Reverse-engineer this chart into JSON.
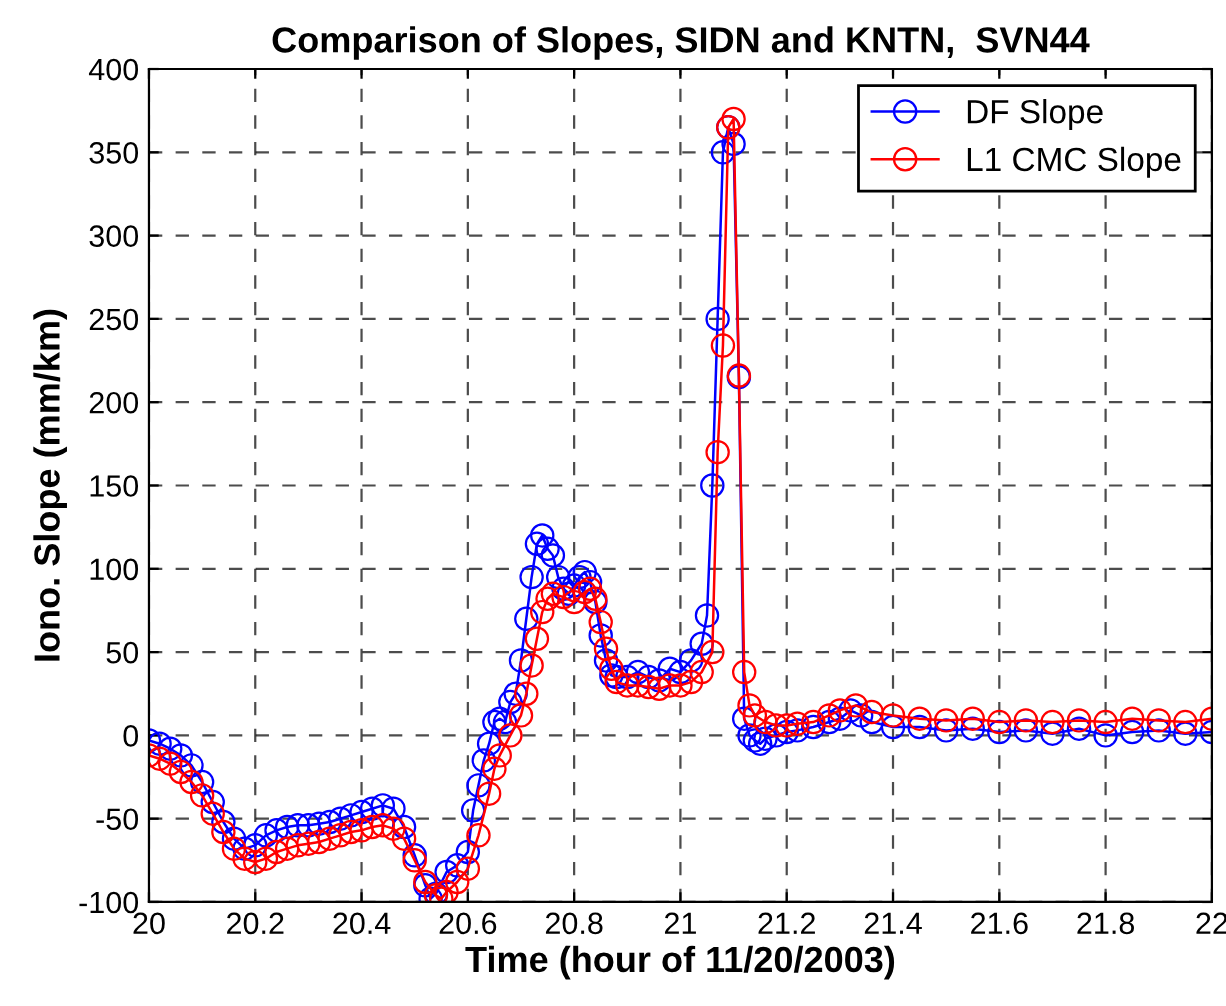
{
  "chart_data": {
    "type": "line",
    "title": "Comparison of Slopes, SIDN and KNTN,  SVN44",
    "xlabel": "Time (hour of 11/20/2003)",
    "ylabel": "Iono. Slope (mm/km)",
    "xlim": [
      20,
      22
    ],
    "xticks": [
      20,
      20.2,
      20.4,
      20.6,
      20.8,
      21,
      21.2,
      21.4,
      21.6,
      21.8,
      22
    ],
    "ylim": [
      -100,
      400
    ],
    "yticks": [
      -100,
      -50,
      0,
      50,
      100,
      150,
      200,
      250,
      300,
      350,
      400
    ],
    "grid": true,
    "legend": "top right",
    "marker": "circle",
    "line_style": "solid",
    "series": [
      {
        "name": "DF Slope",
        "color": "#0000ff",
        "x": [
          20.0,
          20.02,
          20.04,
          20.06,
          20.08,
          20.1,
          20.12,
          20.14,
          20.16,
          20.18,
          20.2,
          20.22,
          20.24,
          20.26,
          20.28,
          20.3,
          20.32,
          20.34,
          20.36,
          20.38,
          20.4,
          20.42,
          20.44,
          20.46,
          20.48,
          20.5,
          20.52,
          20.53,
          20.54,
          20.56,
          20.58,
          20.6,
          20.61,
          20.62,
          20.63,
          20.64,
          20.65,
          20.66,
          20.67,
          20.68,
          20.69,
          20.7,
          20.71,
          20.72,
          20.73,
          20.74,
          20.75,
          20.76,
          20.77,
          20.78,
          20.79,
          20.8,
          20.81,
          20.82,
          20.83,
          20.84,
          20.85,
          20.86,
          20.87,
          20.88,
          20.9,
          20.92,
          20.94,
          20.96,
          20.98,
          21.0,
          21.02,
          21.04,
          21.05,
          21.06,
          21.07,
          21.08,
          21.09,
          21.1,
          21.11,
          21.12,
          21.13,
          21.14,
          21.15,
          21.16,
          21.18,
          21.2,
          21.22,
          21.25,
          21.28,
          21.3,
          21.32,
          21.34,
          21.36,
          21.4,
          21.45,
          21.5,
          21.55,
          21.6,
          21.65,
          21.7,
          21.75,
          21.8,
          21.85,
          21.9,
          21.95,
          22.0
        ],
        "values": [
          -3,
          -5,
          -8,
          -12,
          -18,
          -28,
          -40,
          -52,
          -62,
          -68,
          -66,
          -60,
          -57,
          -55,
          -54,
          -54,
          -53,
          -52,
          -50,
          -48,
          -46,
          -44,
          -42,
          -44,
          -55,
          -72,
          -90,
          -98,
          -95,
          -82,
          -78,
          -70,
          -45,
          -30,
          -15,
          -5,
          8,
          10,
          8,
          20,
          25,
          45,
          70,
          95,
          115,
          120,
          112,
          108,
          95,
          88,
          85,
          90,
          95,
          98,
          92,
          80,
          60,
          45,
          36,
          35,
          35,
          38,
          35,
          33,
          40,
          38,
          45,
          55,
          72,
          150,
          250,
          350,
          365,
          355,
          215,
          10,
          0,
          -3,
          -5,
          -2,
          0,
          2,
          3,
          5,
          8,
          10,
          15,
          12,
          8,
          5,
          5,
          3,
          4,
          2,
          3,
          1,
          4,
          0,
          2,
          3,
          1,
          2
        ]
      },
      {
        "name": "L1 CMC Slope",
        "color": "#ff0000",
        "x": [
          20.0,
          20.02,
          20.04,
          20.06,
          20.08,
          20.1,
          20.12,
          20.14,
          20.16,
          20.18,
          20.2,
          20.22,
          20.24,
          20.26,
          20.28,
          20.3,
          20.32,
          20.34,
          20.36,
          20.38,
          20.4,
          20.42,
          20.44,
          20.46,
          20.48,
          20.5,
          20.52,
          20.54,
          20.55,
          20.56,
          20.58,
          20.6,
          20.62,
          20.64,
          20.65,
          20.66,
          20.68,
          20.7,
          20.71,
          20.72,
          20.73,
          20.74,
          20.75,
          20.76,
          20.78,
          20.8,
          20.82,
          20.83,
          20.84,
          20.85,
          20.86,
          20.87,
          20.88,
          20.9,
          20.92,
          20.94,
          20.96,
          20.98,
          21.0,
          21.02,
          21.04,
          21.06,
          21.07,
          21.08,
          21.09,
          21.1,
          21.11,
          21.12,
          21.13,
          21.14,
          21.16,
          21.18,
          21.2,
          21.22,
          21.25,
          21.28,
          21.3,
          21.33,
          21.36,
          21.4,
          21.45,
          21.5,
          21.55,
          21.6,
          21.65,
          21.7,
          21.75,
          21.8,
          21.85,
          21.9,
          21.95,
          22.0
        ],
        "values": [
          -12,
          -14,
          -17,
          -22,
          -28,
          -36,
          -47,
          -58,
          -68,
          -74,
          -76,
          -74,
          -70,
          -68,
          -66,
          -65,
          -64,
          -62,
          -60,
          -58,
          -57,
          -55,
          -54,
          -56,
          -62,
          -75,
          -88,
          -96,
          -98,
          -94,
          -88,
          -80,
          -60,
          -35,
          -20,
          -12,
          0,
          12,
          25,
          42,
          58,
          74,
          82,
          85,
          83,
          80,
          86,
          88,
          82,
          68,
          52,
          40,
          32,
          30,
          30,
          29,
          28,
          30,
          30,
          32,
          38,
          50,
          170,
          234,
          365,
          370,
          216,
          38,
          18,
          12,
          8,
          6,
          6,
          7,
          8,
          12,
          15,
          18,
          14,
          12,
          10,
          9,
          10,
          8,
          9,
          8,
          9,
          8,
          10,
          9,
          8,
          10
        ]
      }
    ]
  }
}
